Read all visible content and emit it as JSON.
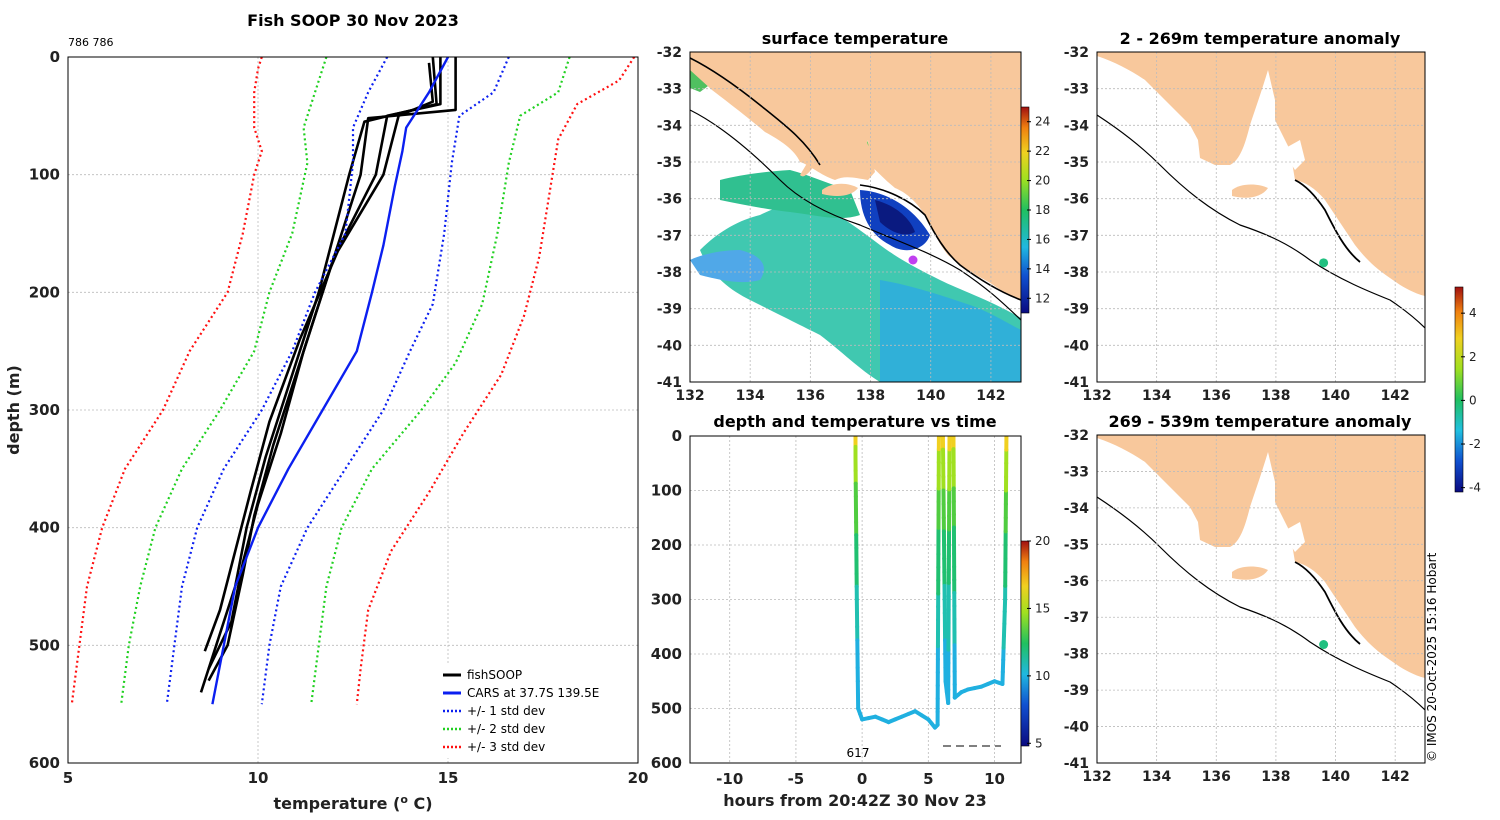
{
  "colors": {
    "fish": "#000000",
    "cars": "#0b1ff0",
    "std1": "#0b1ff0",
    "std2": "#20d020",
    "std3": "#ff1010",
    "land": "#f8c89c",
    "marker": "#20c080"
  },
  "profile": {
    "title": "Fish SOOP 30 Nov 2023",
    "corner_label": "786 786",
    "xlabel": "temperature (",
    "xlabel_sup": "o",
    "xlabel_end": " C)",
    "ylabel": "depth (m)",
    "xticks": [
      "5",
      "10",
      "15",
      "20"
    ],
    "yticks": [
      "0",
      "100",
      "200",
      "300",
      "400",
      "500",
      "600"
    ],
    "legend": [
      {
        "label": "fishSOOP",
        "style": "solid",
        "color": "#000000"
      },
      {
        "label": "CARS at 37.7S 139.5E",
        "style": "solid",
        "color": "#0b1ff0"
      },
      {
        "label": "+/- 1 std dev",
        "style": "dotted",
        "color": "#0b1ff0"
      },
      {
        "label": "+/- 2 std dev",
        "style": "dotted",
        "color": "#20d020"
      },
      {
        "label": "+/- 3 std dev",
        "style": "dotted",
        "color": "#ff1010"
      }
    ]
  },
  "chart_data": [
    {
      "type": "line",
      "title": "Fish SOOP 30 Nov 2023",
      "xlabel": "temperature (o C)",
      "ylabel": "depth (m)",
      "xlim": [
        5,
        20
      ],
      "ylim": [
        600,
        0
      ],
      "series": [
        {
          "name": "fishSOOP",
          "points": [
            [
              14.6,
              0
            ],
            [
              14.7,
              40
            ],
            [
              12.8,
              55
            ],
            [
              12.4,
              100
            ],
            [
              11.6,
              200
            ],
            [
              10.8,
              280
            ],
            [
              10.2,
              340
            ],
            [
              9.7,
              400
            ],
            [
              9.4,
              450
            ],
            [
              8.9,
              500
            ],
            [
              8.5,
              540
            ]
          ]
        },
        {
          "name": "fishSOOP",
          "points": [
            [
              15.2,
              0
            ],
            [
              15.2,
              45
            ],
            [
              12.9,
              52
            ],
            [
              12.7,
              100
            ],
            [
              11.8,
              190
            ],
            [
              11.0,
              270
            ],
            [
              10.4,
              330
            ],
            [
              9.9,
              390
            ],
            [
              9.6,
              440
            ],
            [
              9.2,
              500
            ],
            [
              8.7,
              530
            ]
          ]
        },
        {
          "name": "fishSOOP",
          "points": [
            [
              14.8,
              0
            ],
            [
              14.8,
              40
            ],
            [
              13.4,
              50
            ],
            [
              13.1,
              100
            ],
            [
              12.0,
              170
            ],
            [
              11.2,
              250
            ],
            [
              10.6,
              320
            ],
            [
              10.0,
              380
            ],
            [
              9.6,
              430
            ],
            [
              9.3,
              480
            ],
            [
              8.7,
              520
            ]
          ]
        },
        {
          "name": "fishSOOP",
          "points": [
            [
              14.5,
              5
            ],
            [
              14.6,
              38
            ],
            [
              13.7,
              50
            ],
            [
              13.3,
              100
            ],
            [
              12.1,
              165
            ],
            [
              11.1,
              240
            ],
            [
              10.3,
              310
            ],
            [
              9.8,
              370
            ],
            [
              9.4,
              420
            ],
            [
              9.0,
              470
            ],
            [
              8.6,
              505
            ]
          ]
        },
        {
          "name": "CARS at 37.7S 139.5E",
          "points": [
            [
              15.0,
              0
            ],
            [
              14.5,
              30
            ],
            [
              13.9,
              60
            ],
            [
              13.8,
              80
            ],
            [
              13.6,
              110
            ],
            [
              13.3,
              160
            ],
            [
              13.0,
              200
            ],
            [
              12.6,
              250
            ],
            [
              11.7,
              300
            ],
            [
              10.8,
              350
            ],
            [
              10.0,
              400
            ],
            [
              9.4,
              450
            ],
            [
              9.1,
              500
            ],
            [
              8.8,
              550
            ]
          ]
        },
        {
          "name": "+1 std dev",
          "points": [
            [
              16.6,
              0
            ],
            [
              16.2,
              30
            ],
            [
              15.3,
              50
            ],
            [
              15.1,
              90
            ],
            [
              14.9,
              150
            ],
            [
              14.6,
              210
            ],
            [
              14.0,
              250
            ],
            [
              13.3,
              300
            ],
            [
              12.3,
              350
            ],
            [
              11.3,
              400
            ],
            [
              10.6,
              450
            ],
            [
              10.3,
              500
            ],
            [
              10.1,
              550
            ]
          ]
        },
        {
          "name": "-1 std dev",
          "points": [
            [
              13.4,
              0
            ],
            [
              12.9,
              30
            ],
            [
              12.5,
              60
            ],
            [
              12.5,
              90
            ],
            [
              12.3,
              150
            ],
            [
              11.5,
              200
            ],
            [
              10.9,
              250
            ],
            [
              10.1,
              300
            ],
            [
              9.1,
              350
            ],
            [
              8.4,
              400
            ],
            [
              8.0,
              450
            ],
            [
              7.8,
              500
            ],
            [
              7.6,
              550
            ]
          ]
        },
        {
          "name": "+2 std dev",
          "points": [
            [
              18.2,
              0
            ],
            [
              17.9,
              30
            ],
            [
              16.9,
              50
            ],
            [
              16.6,
              90
            ],
            [
              16.3,
              150
            ],
            [
              15.9,
              210
            ],
            [
              15.2,
              260
            ],
            [
              14.3,
              300
            ],
            [
              13.0,
              350
            ],
            [
              12.2,
              400
            ],
            [
              11.8,
              450
            ],
            [
              11.6,
              500
            ],
            [
              11.4,
              550
            ]
          ]
        },
        {
          "name": "-2 std dev",
          "points": [
            [
              11.8,
              0
            ],
            [
              11.5,
              30
            ],
            [
              11.2,
              60
            ],
            [
              11.3,
              90
            ],
            [
              10.9,
              150
            ],
            [
              10.3,
              200
            ],
            [
              9.9,
              250
            ],
            [
              9.0,
              300
            ],
            [
              8.0,
              350
            ],
            [
              7.3,
              400
            ],
            [
              6.9,
              450
            ],
            [
              6.6,
              500
            ],
            [
              6.4,
              550
            ]
          ]
        },
        {
          "name": "+3 std dev",
          "points": [
            [
              19.9,
              0
            ],
            [
              19.5,
              20
            ],
            [
              18.4,
              40
            ],
            [
              17.9,
              70
            ],
            [
              17.7,
              110
            ],
            [
              17.4,
              170
            ],
            [
              17.0,
              220
            ],
            [
              16.4,
              270
            ],
            [
              15.4,
              320
            ],
            [
              14.5,
              370
            ],
            [
              13.5,
              420
            ],
            [
              12.9,
              470
            ],
            [
              12.7,
              520
            ],
            [
              12.6,
              550
            ]
          ]
        },
        {
          "name": "-3 std dev",
          "points": [
            [
              10.1,
              0
            ],
            [
              10.0,
              10
            ],
            [
              9.9,
              30
            ],
            [
              9.9,
              60
            ],
            [
              10.1,
              80
            ],
            [
              9.9,
              100
            ],
            [
              9.6,
              150
            ],
            [
              9.2,
              200
            ],
            [
              8.2,
              250
            ],
            [
              7.5,
              300
            ],
            [
              6.5,
              350
            ],
            [
              5.9,
              400
            ],
            [
              5.5,
              450
            ],
            [
              5.3,
              500
            ],
            [
              5.1,
              550
            ]
          ]
        }
      ]
    },
    {
      "type": "heatmap",
      "title": "surface temperature",
      "xlim": [
        132,
        143
      ],
      "ylim": [
        -41,
        -32
      ],
      "colorbar": {
        "min": 11,
        "max": 25,
        "ticks": [
          "12",
          "14",
          "16",
          "18",
          "20",
          "22",
          "24"
        ]
      }
    },
    {
      "type": "scatter",
      "title": "depth and temperature vs time",
      "xlabel": "hours from 20:42Z 30 Nov 23",
      "xlim": [
        -13,
        12
      ],
      "ylim": [
        600,
        0
      ],
      "xticks": [
        "-10",
        "-5",
        "0",
        "5",
        "10"
      ],
      "yticks": [
        "0",
        "100",
        "200",
        "300",
        "400",
        "500",
        "600"
      ],
      "annotation": "617",
      "colorbar": {
        "min": 5,
        "max": 20,
        "ticks": [
          "5",
          "10",
          "15",
          "20"
        ]
      },
      "series": [
        {
          "name": "depth",
          "points": [
            [
              -0.5,
              0
            ],
            [
              -0.5,
              40
            ],
            [
              -0.4,
              300
            ],
            [
              -0.3,
              500
            ],
            [
              0,
              520
            ],
            [
              1,
              515
            ],
            [
              2,
              525
            ],
            [
              3,
              515
            ],
            [
              4,
              505
            ],
            [
              5,
              520
            ],
            [
              5.5,
              535
            ],
            [
              5.7,
              530
            ],
            [
              5.8,
              0
            ],
            [
              6.1,
              0
            ],
            [
              6.3,
              450
            ],
            [
              6.5,
              490
            ],
            [
              6.6,
              0
            ],
            [
              6.9,
              0
            ],
            [
              7.0,
              480
            ],
            [
              7.5,
              470
            ],
            [
              8,
              465
            ],
            [
              9,
              460
            ],
            [
              10,
              450
            ],
            [
              10.6,
              455
            ],
            [
              10.8,
              300
            ],
            [
              10.9,
              0
            ]
          ]
        }
      ]
    },
    {
      "type": "heatmap",
      "title": "2 - 269m temperature anomaly",
      "xlim": [
        132,
        143
      ],
      "ylim": [
        -41,
        -32
      ],
      "point": {
        "lon": 139.6,
        "lat": -37.75
      }
    },
    {
      "type": "heatmap",
      "title": "269 - 539m temperature anomaly",
      "xlim": [
        132,
        143
      ],
      "ylim": [
        -41,
        -32
      ],
      "point": {
        "lon": 139.6,
        "lat": -37.75
      },
      "colorbar": {
        "min": -4,
        "max": 5,
        "ticks": [
          "4",
          "2",
          "0",
          "-2",
          "-4"
        ]
      }
    }
  ],
  "maps": {
    "xticks": [
      "132",
      "134",
      "136",
      "138",
      "140",
      "142"
    ],
    "yticks": [
      "-32",
      "-33",
      "-34",
      "-35",
      "-36",
      "-37",
      "-38",
      "-39",
      "-40",
      "-41"
    ],
    "sst_title": "surface temperature",
    "anom1_title": "2 - 269m temperature anomaly",
    "anom2_title": "269 - 539m temperature anomaly"
  },
  "timeseries": {
    "title": "depth and temperature vs time",
    "xlabel": "hours from 20:42Z 30 Nov 23",
    "xticks": [
      "-10",
      "-5",
      "0",
      "5",
      "10"
    ],
    "yticks": [
      "0",
      "100",
      "200",
      "300",
      "400",
      "500",
      "600"
    ],
    "annotation": "617"
  },
  "colorbars": {
    "sst": [
      "12",
      "14",
      "16",
      "18",
      "20",
      "22",
      "24"
    ],
    "ts": [
      "5",
      "10",
      "15",
      "20"
    ],
    "anom": [
      "4",
      "2",
      "0",
      "-2",
      "-4"
    ]
  },
  "copyright": "© IMOS 20-Oct-2025 15:16 Hobart"
}
